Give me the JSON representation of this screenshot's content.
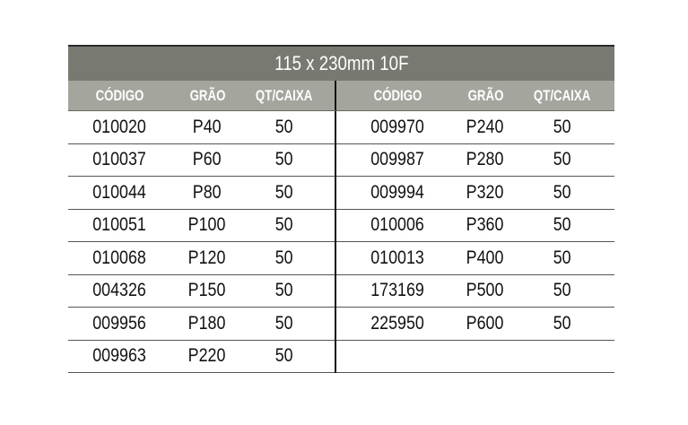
{
  "title": "115 x 230mm 10F",
  "headers": [
    "CÓDIGO",
    "GRÃO",
    "QT/CAIXA"
  ],
  "left_rows": [
    [
      "010020",
      "P40",
      "50"
    ],
    [
      "010037",
      "P60",
      "50"
    ],
    [
      "010044",
      "P80",
      "50"
    ],
    [
      "010051",
      "P100",
      "50"
    ],
    [
      "010068",
      "P120",
      "50"
    ],
    [
      "004326",
      "P150",
      "50"
    ],
    [
      "009956",
      "P180",
      "50"
    ],
    [
      "009963",
      "P220",
      "50"
    ]
  ],
  "right_rows": [
    [
      "009970",
      "P240",
      "50"
    ],
    [
      "009987",
      "P280",
      "50"
    ],
    [
      "009994",
      "P320",
      "50"
    ],
    [
      "010006",
      "P360",
      "50"
    ],
    [
      "010013",
      "P400",
      "50"
    ],
    [
      "173169",
      "P500",
      "50"
    ],
    [
      "225950",
      "P600",
      "50"
    ],
    [
      "",
      "",
      ""
    ]
  ],
  "colors": {
    "title_bg": "#787970",
    "header_bg": "#a4a59d"
  }
}
